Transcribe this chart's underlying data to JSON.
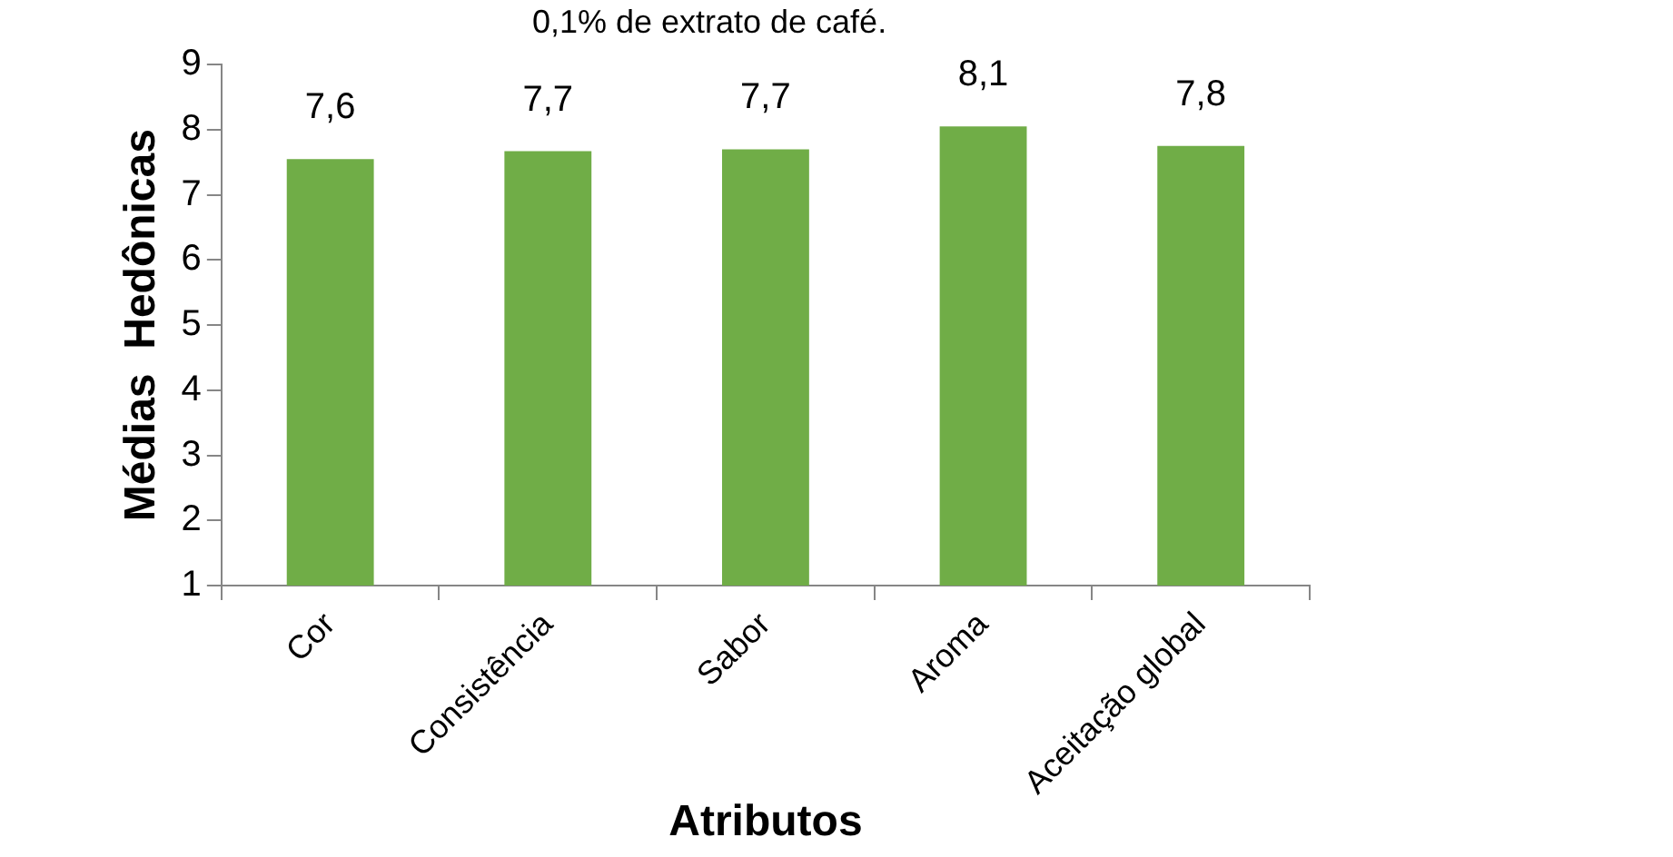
{
  "chart_data": {
    "type": "bar",
    "title": "0,1% de extrato de café.",
    "xlabel": "Atributos",
    "ylabel": "Médias  Hedônicas",
    "categories": [
      "Cor",
      "Consistência",
      "Sabor",
      "Aroma",
      "Aceitação global"
    ],
    "values": [
      7.55,
      7.67,
      7.7,
      8.05,
      7.75
    ],
    "value_labels": [
      "7,6",
      "7,7",
      "7,7",
      "8,1",
      "7,8"
    ],
    "color": "#70ad47",
    "ylim": [
      1,
      9
    ],
    "yticks": [
      1,
      2,
      3,
      4,
      5,
      6,
      7,
      8,
      9
    ],
    "grid": false,
    "legend": false
  }
}
